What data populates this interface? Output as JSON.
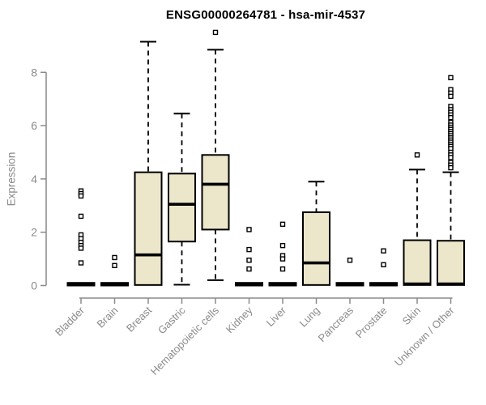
{
  "chart_data": {
    "type": "boxplot",
    "title": "ENSG00000264781 - hsa-mir-4537",
    "ylabel": "Expression",
    "xlabel": "",
    "ylim": [
      0,
      9.6
    ],
    "yticks": [
      0,
      2,
      4,
      6,
      8
    ],
    "grid": false,
    "legend": "none",
    "categories": [
      "Bladder",
      "Brain",
      "Breast",
      "Gastric",
      "Hematopoietic cells",
      "Kidney",
      "Liver",
      "Lung",
      "Pancreas",
      "Prostate",
      "Skin",
      "Unknown / Other"
    ],
    "series": [
      {
        "category": "Bladder",
        "whisker_low": 0,
        "q1": 0,
        "median": 0.03,
        "q3": 0.1,
        "whisker_high": 0.12,
        "outliers": [
          3.55,
          3.45,
          3.36,
          2.6,
          1.9,
          1.76,
          1.62,
          1.5,
          1.4,
          0.85
        ]
      },
      {
        "category": "Brain",
        "whisker_low": 0,
        "q1": 0,
        "median": 0.03,
        "q3": 0.1,
        "whisker_high": 0.12,
        "outliers": [
          1.05,
          0.75
        ]
      },
      {
        "category": "Breast",
        "whisker_low": 0,
        "q1": 0.02,
        "median": 1.15,
        "q3": 4.25,
        "whisker_high": 9.15,
        "outliers": []
      },
      {
        "category": "Gastric",
        "whisker_low": 0.03,
        "q1": 1.65,
        "median": 3.05,
        "q3": 4.2,
        "whisker_high": 6.45,
        "outliers": []
      },
      {
        "category": "Hematopoietic cells",
        "whisker_low": 0.2,
        "q1": 2.1,
        "median": 3.8,
        "q3": 4.9,
        "whisker_high": 8.85,
        "outliers": [
          9.5
        ]
      },
      {
        "category": "Kidney",
        "whisker_low": 0,
        "q1": 0,
        "median": 0.03,
        "q3": 0.1,
        "whisker_high": 0.12,
        "outliers": [
          2.1,
          1.35,
          0.95,
          0.62
        ]
      },
      {
        "category": "Liver",
        "whisker_low": 0,
        "q1": 0,
        "median": 0.03,
        "q3": 0.1,
        "whisker_high": 0.12,
        "outliers": [
          2.3,
          1.5,
          1.12,
          1.0,
          0.62
        ]
      },
      {
        "category": "Lung",
        "whisker_low": 0,
        "q1": 0.02,
        "median": 0.85,
        "q3": 2.75,
        "whisker_high": 3.9,
        "outliers": []
      },
      {
        "category": "Pancreas",
        "whisker_low": 0,
        "q1": 0,
        "median": 0.03,
        "q3": 0.1,
        "whisker_high": 0.12,
        "outliers": [
          0.95
        ]
      },
      {
        "category": "Prostate",
        "whisker_low": 0,
        "q1": 0,
        "median": 0.03,
        "q3": 0.1,
        "whisker_high": 0.12,
        "outliers": [
          1.3,
          0.78
        ]
      },
      {
        "category": "Skin",
        "whisker_low": 0,
        "q1": 0.02,
        "median": 0.06,
        "q3": 1.7,
        "whisker_high": 4.35,
        "outliers": [
          4.9
        ]
      },
      {
        "category": "Unknown / Other",
        "whisker_low": 0,
        "q1": 0.02,
        "median": 0.06,
        "q3": 1.68,
        "whisker_high": 4.25,
        "outliers": [
          7.8,
          7.35,
          7.22,
          7.1,
          6.72,
          6.6,
          6.5,
          6.4,
          6.3,
          6.12,
          6.02,
          5.94,
          5.86,
          5.78,
          5.7,
          5.62,
          5.54,
          5.46,
          5.38,
          5.3,
          5.22,
          5.14,
          5.0,
          4.9,
          4.8,
          4.62,
          4.52,
          4.42
        ]
      }
    ],
    "colors": {
      "box_fill": "#ece7ca",
      "box_stroke": "#000000",
      "median": "#000000",
      "whisker": "#000000",
      "outlier_fill": "#ffffff",
      "axis": "#8a8a8a",
      "title": "#000000",
      "background": "#ffffff"
    }
  }
}
